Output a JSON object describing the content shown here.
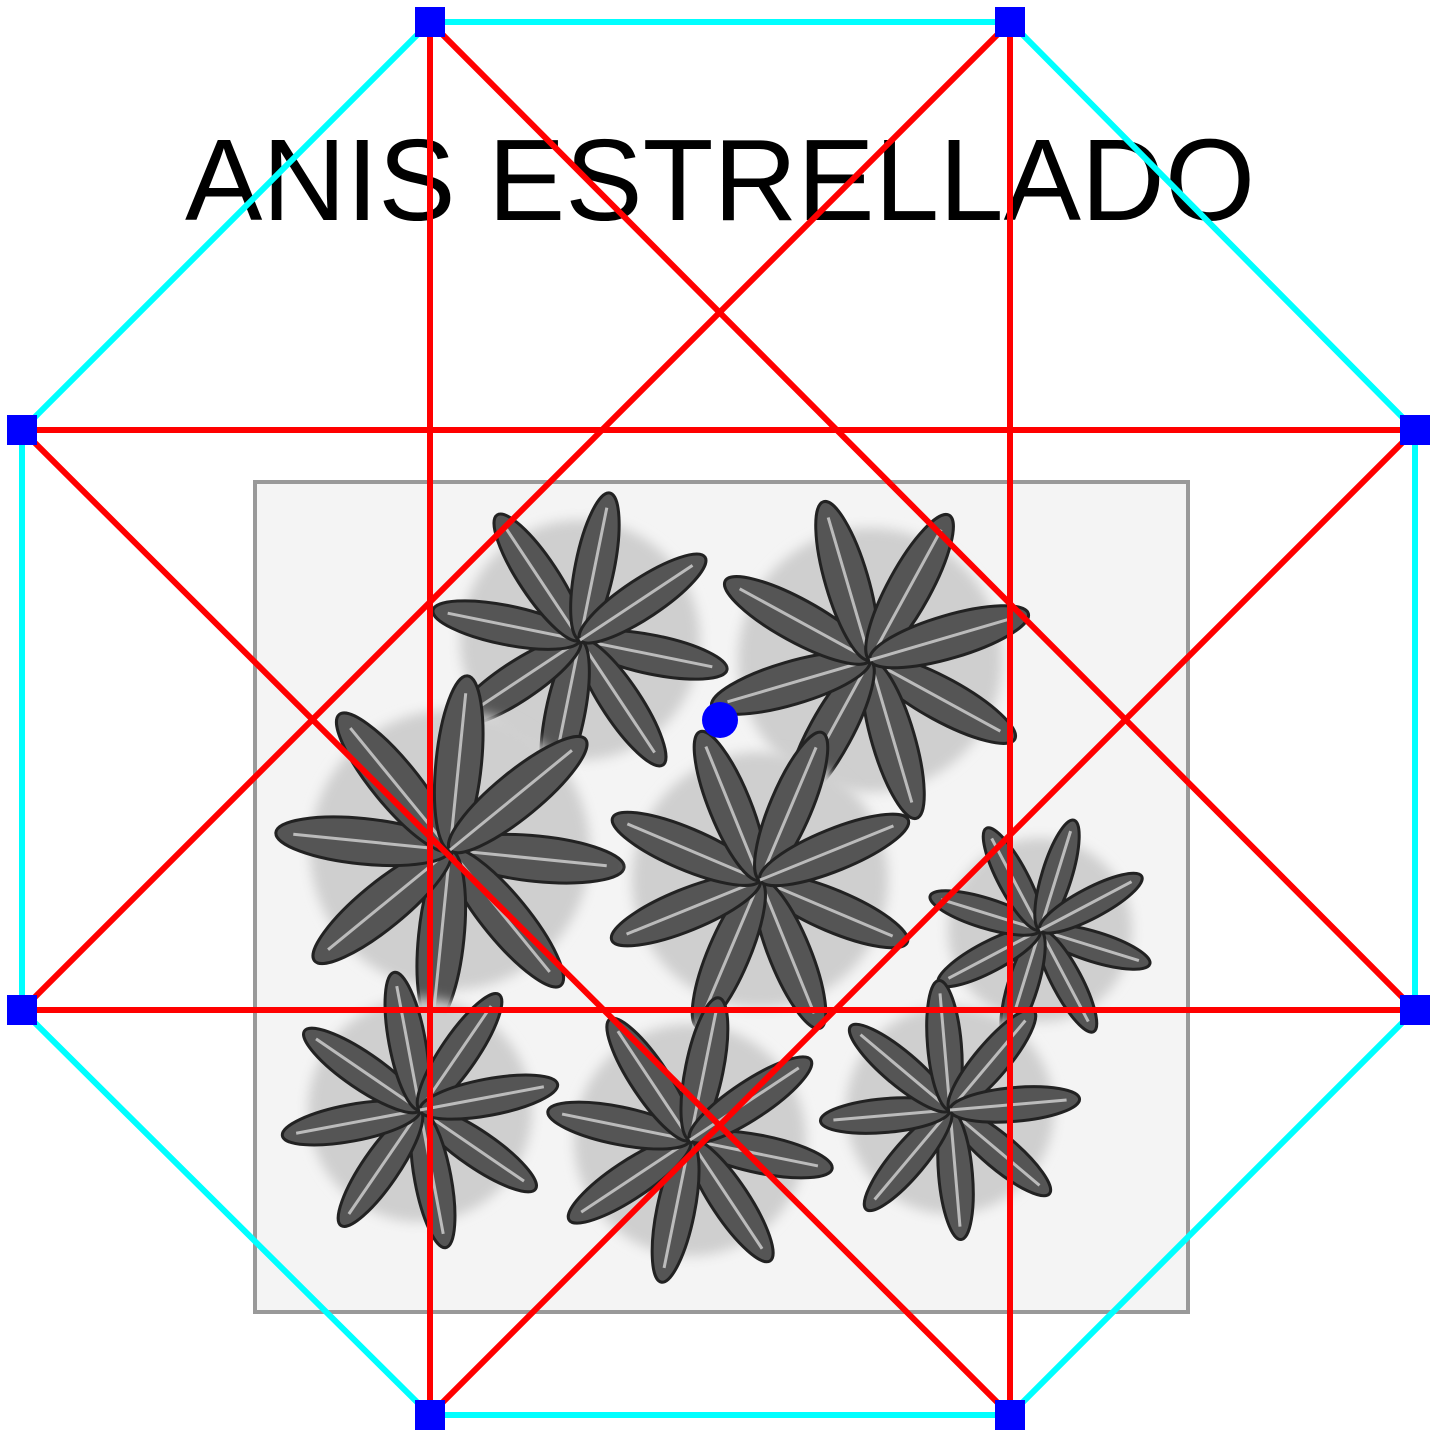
{
  "title": "ANIS ESTRELLADO"
}
